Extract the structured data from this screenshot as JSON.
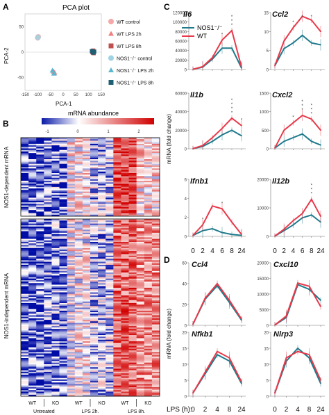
{
  "colors": {
    "wt": "#e8394a",
    "nos1": "#1e7a8c",
    "wt_light": "#f4a9a8",
    "nos1_light": "#9fd3e3"
  },
  "panel_a": {
    "letter": "A",
    "title": "PCA plot",
    "xlabel": "PCA-1",
    "ylabel": "PCA-2",
    "x_ticks": [
      "-150",
      "-100",
      "-50",
      "0",
      "50",
      "100",
      "150"
    ],
    "y_ticks": [
      "-50",
      "0",
      "50"
    ],
    "legend": [
      {
        "label": "WT control",
        "marker": "circle",
        "color": "#f4a9a8"
      },
      {
        "label": "WT LPS 2h",
        "marker": "triangle",
        "color": "#f08080"
      },
      {
        "label": "WT LPS 8h",
        "marker": "square",
        "color": "#c0504d"
      },
      {
        "label": "NOS1⁻/⁻ control",
        "marker": "circle",
        "color": "#9fd3e3"
      },
      {
        "label": "NOS1⁻/⁻ LPS 2h",
        "marker": "triangle",
        "color": "#5bb6cf"
      },
      {
        "label": "NOS1⁻/⁻ LPS 8h",
        "marker": "square",
        "color": "#1e5f73"
      }
    ]
  },
  "panel_b": {
    "letter": "B",
    "colorbar_title": "mRNA abundance",
    "colorbar_ticks": [
      "-1",
      "0",
      "1",
      "2"
    ],
    "row_labels": [
      "NOS1-dependent mRNA",
      "NOS1-independent mRNA"
    ],
    "col_groups": [
      {
        "wt": "WT",
        "ko": "KO",
        "group": "Untreated"
      },
      {
        "wt": "WT",
        "ko": "KO",
        "group": "LPS 2h."
      },
      {
        "wt": "WT",
        "ko": "KO",
        "group": "LPS 8h."
      }
    ]
  },
  "panel_c": {
    "letter": "C",
    "ylabel": "mRNA (fold change)",
    "legend": [
      "NOS1⁻/⁻",
      "WT"
    ],
    "x_ticks": [
      "0",
      "2",
      "4",
      "6",
      "8",
      "24"
    ]
  },
  "panel_d": {
    "letter": "D",
    "ylabel": "mRNA (fold change)",
    "xlabel": "LPS (h):",
    "x_ticks": [
      "0",
      "2",
      "4",
      "8",
      "24"
    ]
  },
  "chart_data": [
    {
      "type": "scatter",
      "title": "PCA plot",
      "xlabel": "PCA-1",
      "ylabel": "PCA-2",
      "xlim": [
        -150,
        150
      ],
      "ylim": [
        -75,
        75
      ],
      "series": [
        {
          "name": "WT control",
          "points": [
            [
              -100,
              28
            ],
            [
              -98,
              30
            ]
          ]
        },
        {
          "name": "WT LPS 2h",
          "points": [
            [
              -38,
              -38
            ],
            [
              -34,
              -40
            ]
          ]
        },
        {
          "name": "WT LPS 8h",
          "points": [
            [
              115,
              0
            ],
            [
              118,
              3
            ],
            [
              120,
              -2
            ]
          ]
        },
        {
          "name": "NOS1⁻/⁻ control",
          "points": [
            [
              -99,
              29
            ]
          ]
        },
        {
          "name": "NOS1⁻/⁻ LPS 2h",
          "points": [
            [
              -42,
              -36
            ],
            [
              -36,
              -42
            ]
          ]
        },
        {
          "name": "NOS1⁻/⁻ LPS 8h",
          "points": [
            [
              113,
              2
            ],
            [
              117,
              -1
            ],
            [
              122,
              1
            ]
          ]
        }
      ]
    },
    {
      "type": "heatmap",
      "colorbar_range": [
        -1,
        2
      ],
      "column_groups": [
        "Untreated WT",
        "Untreated KO",
        "LPS 2h. WT",
        "LPS 2h. KO",
        "LPS 8h. WT",
        "LPS 8h. KO"
      ],
      "row_groups": [
        "NOS1-dependent mRNA",
        "NOS1-independent mRNA"
      ],
      "block_means": [
        [
          -0.6,
          -0.5,
          0.3,
          -0.2,
          1.5,
          0.4
        ],
        [
          -0.6,
          -0.5,
          0.2,
          -0.2,
          1.2,
          0.9
        ]
      ]
    },
    {
      "type": "line",
      "gene": "Il6",
      "x": [
        "0",
        "2",
        "4",
        "6",
        "8",
        "24"
      ],
      "ylim": [
        0,
        120000
      ],
      "yticks": [
        "0",
        "20000",
        "40000",
        "60000",
        "80000",
        "100000",
        "120000"
      ],
      "series": [
        {
          "name": "NOS1⁻/⁻",
          "values": [
            500,
            5000,
            22000,
            45000,
            45000,
            3000
          ]
        },
        {
          "name": "WT",
          "values": [
            500,
            6000,
            25000,
            62000,
            82000,
            5000
          ]
        }
      ],
      "significance": [
        "",
        "",
        "",
        "*",
        "***",
        ""
      ]
    },
    {
      "type": "line",
      "gene": "Ccl2",
      "x": [
        "0",
        "2",
        "4",
        "6",
        "8",
        "24"
      ],
      "ylim": [
        0,
        15
      ],
      "yticks": [
        "0",
        "5",
        "10",
        "15"
      ],
      "series": [
        {
          "name": "NOS1⁻/⁻",
          "values": [
            1,
            5.5,
            7,
            9,
            7,
            6.5
          ]
        },
        {
          "name": "WT",
          "values": [
            1,
            7.5,
            11,
            14,
            13,
            10
          ]
        }
      ],
      "significance": [
        "",
        "",
        "*",
        "*",
        "*",
        ""
      ]
    },
    {
      "type": "line",
      "gene": "Il1b",
      "x": [
        "0",
        "2",
        "4",
        "6",
        "8",
        "24"
      ],
      "ylim": [
        0,
        60000
      ],
      "yticks": [
        "0",
        "20000",
        "40000",
        "60000"
      ],
      "series": [
        {
          "name": "NOS1⁻/⁻",
          "values": [
            200,
            2500,
            8000,
            15000,
            20000,
            14000
          ]
        },
        {
          "name": "WT",
          "values": [
            200,
            3500,
            12000,
            22000,
            33000,
            25000
          ]
        }
      ],
      "significance": [
        "",
        "",
        "",
        "",
        "****",
        "*"
      ]
    },
    {
      "type": "line",
      "gene": "Cxcl2",
      "x": [
        "0",
        "2",
        "4",
        "6",
        "8",
        "24"
      ],
      "ylim": [
        0,
        1500
      ],
      "yticks": [
        "0",
        "500",
        "1000",
        "1500"
      ],
      "series": [
        {
          "name": "NOS1⁻/⁻",
          "values": [
            20,
            200,
            300,
            400,
            200,
            100
          ]
        },
        {
          "name": "WT",
          "values": [
            20,
            500,
            700,
            900,
            800,
            500
          ]
        }
      ],
      "significance": [
        "",
        "",
        "*",
        "***",
        "***",
        ""
      ]
    },
    {
      "type": "line",
      "gene": "Ifnb1",
      "x": [
        "0",
        "2",
        "4",
        "6",
        "8",
        "24"
      ],
      "ylim": [
        0,
        6
      ],
      "yticks": [
        "0",
        "2",
        "4",
        "6"
      ],
      "series": [
        {
          "name": "NOS1⁻/⁻",
          "values": [
            0.1,
            0.6,
            0.8,
            0.4,
            0.2,
            0.1
          ]
        },
        {
          "name": "WT",
          "values": [
            0.1,
            1.2,
            3.2,
            2.9,
            1.5,
            0.2
          ]
        }
      ],
      "significance": [
        "",
        "*",
        "",
        "*",
        "",
        ""
      ]
    },
    {
      "type": "line",
      "gene": "Il12b",
      "x": [
        "0",
        "2",
        "4",
        "6",
        "8",
        "24"
      ],
      "ylim": [
        0,
        20000
      ],
      "yticks": [
        "0",
        "10000",
        "20000"
      ],
      "series": [
        {
          "name": "NOS1⁻/⁻",
          "values": [
            100,
            2000,
            4000,
            6500,
            7500,
            5000
          ]
        },
        {
          "name": "WT",
          "values": [
            100,
            2500,
            5500,
            8000,
            13000,
            7000
          ]
        }
      ],
      "significance": [
        "",
        "",
        "",
        "",
        "***",
        ""
      ]
    },
    {
      "type": "line",
      "gene": "Ccl4",
      "x": [
        "0",
        "2",
        "4",
        "8",
        "24"
      ],
      "ylim": [
        0,
        60
      ],
      "yticks": [
        "0",
        "20",
        "40",
        "60"
      ],
      "series": [
        {
          "name": "NOS1⁻/⁻",
          "values": [
            1,
            25,
            38,
            22,
            5
          ]
        },
        {
          "name": "WT",
          "values": [
            1,
            26,
            40,
            24,
            6
          ]
        }
      ]
    },
    {
      "type": "line",
      "gene": "Cxcl10",
      "x": [
        "0",
        "2",
        "4",
        "8",
        "24"
      ],
      "ylim": [
        0,
        20000
      ],
      "yticks": [
        "0",
        "5000",
        "10000",
        "15000",
        "20000"
      ],
      "series": [
        {
          "name": "NOS1⁻/⁻",
          "values": [
            100,
            2500,
            13000,
            11500,
            8000
          ]
        },
        {
          "name": "WT",
          "values": [
            100,
            3000,
            13500,
            12500,
            6000
          ]
        }
      ]
    },
    {
      "type": "line",
      "gene": "Nfkb1",
      "x": [
        "0",
        "2",
        "4",
        "8",
        "24"
      ],
      "ylim": [
        0,
        20
      ],
      "yticks": [
        "0",
        "5",
        "10",
        "15",
        "20"
      ],
      "series": [
        {
          "name": "NOS1⁻/⁻",
          "values": [
            1,
            7,
            13,
            11,
            4
          ]
        },
        {
          "name": "WT",
          "values": [
            1,
            7.5,
            14,
            12,
            4.5
          ]
        }
      ]
    },
    {
      "type": "line",
      "gene": "Nlrp3",
      "x": [
        "0",
        "2",
        "4",
        "8",
        "24"
      ],
      "ylim": [
        0,
        20
      ],
      "yticks": [
        "0",
        "5",
        "10",
        "15",
        "20"
      ],
      "series": [
        {
          "name": "NOS1⁻/⁻",
          "values": [
            1,
            11,
            15,
            12,
            4
          ]
        },
        {
          "name": "WT",
          "values": [
            1,
            12,
            14,
            13,
            5
          ]
        }
      ]
    }
  ]
}
